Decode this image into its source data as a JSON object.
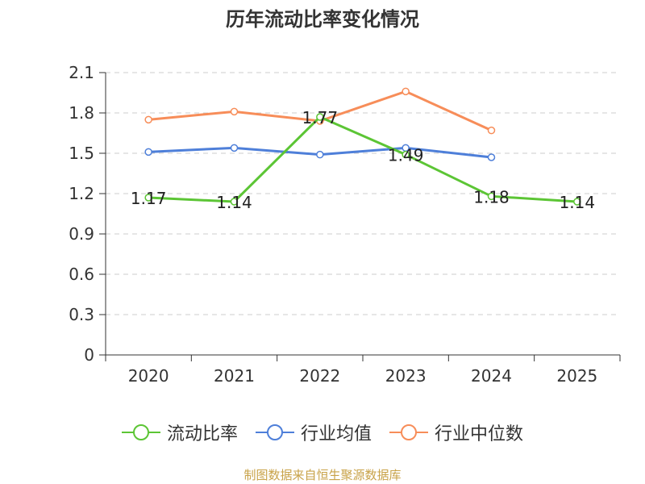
{
  "chart_data": {
    "type": "line",
    "title": "历年流动比率变化情况",
    "categories": [
      "2020",
      "2021",
      "2022",
      "2023",
      "2024",
      "2025"
    ],
    "ylim": [
      0,
      2.1
    ],
    "yticks": [
      "0",
      "0.3",
      "0.6",
      "0.9",
      "1.2",
      "1.5",
      "1.8",
      "2.1"
    ],
    "grid": true,
    "legend_position": "bottom",
    "series": [
      {
        "name": "流动比率",
        "color": "#5cc535",
        "values": [
          1.17,
          1.14,
          1.77,
          1.49,
          1.18,
          1.14
        ],
        "labels": [
          "1.17",
          "1.14",
          "1.77",
          "1.49",
          "1.18",
          "1.14"
        ]
      },
      {
        "name": "行业均值",
        "color": "#4e7fd9",
        "values": [
          1.51,
          1.54,
          1.49,
          1.54,
          1.47,
          null
        ]
      },
      {
        "name": "行业中位数",
        "color": "#f78d59",
        "values": [
          1.75,
          1.81,
          1.74,
          1.96,
          1.67,
          null
        ]
      }
    ]
  },
  "source_text": "制图数据来自恒生聚源数据库"
}
